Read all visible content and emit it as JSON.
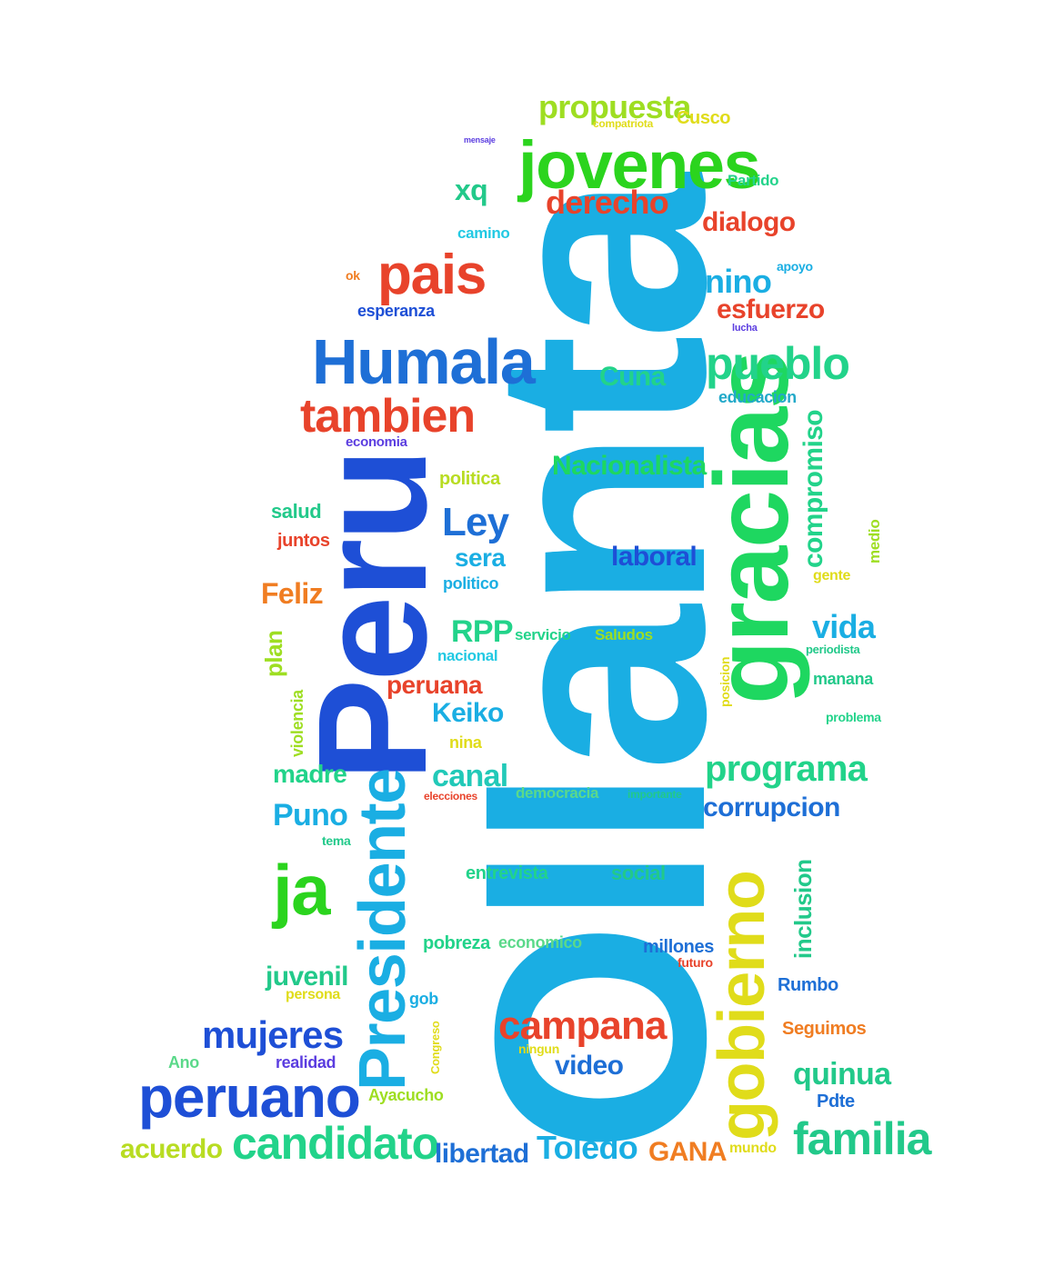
{
  "palette": {
    "cyan": "#1aaee3",
    "blue": "#1e4fd6",
    "green": "#1ed760",
    "lime": "#7fdc2a",
    "yellow": "#e0dc1a",
    "red": "#e8432b",
    "orange": "#f07d22",
    "teal": "#22c9b8",
    "purple": "#5b3de0",
    "lightgreen": "#5bd98a"
  },
  "words": [
    {
      "id": "ollanta",
      "text": "Ollanta",
      "color": "#1aaee3"
    },
    {
      "id": "peru",
      "text": "Peru",
      "color": "#1e4fd6"
    },
    {
      "id": "gracias",
      "text": "gracias",
      "color": "#1ed760"
    },
    {
      "id": "gobierno",
      "text": "gobierno",
      "color": "#e0dc1a"
    },
    {
      "id": "presidente",
      "text": "Presidente",
      "color": "#1aaee3"
    },
    {
      "id": "jovenes",
      "text": "jovenes",
      "color": "#2bd41e"
    },
    {
      "id": "humala",
      "text": "Humala",
      "color": "#1e6fd6"
    },
    {
      "id": "pais",
      "text": "pais",
      "color": "#e8432b"
    },
    {
      "id": "peruano",
      "text": "peruano",
      "color": "#1e4fd6"
    },
    {
      "id": "candidato",
      "text": "candidato",
      "color": "#22d38a"
    },
    {
      "id": "familia",
      "text": "familia",
      "color": "#22c98a"
    },
    {
      "id": "tambien",
      "text": "tambien",
      "color": "#e8432b"
    },
    {
      "id": "ja",
      "text": "ja",
      "color": "#2bd41e"
    },
    {
      "id": "mujeres",
      "text": "mujeres",
      "color": "#1e4fd6"
    },
    {
      "id": "pueblo",
      "text": "pueblo",
      "color": "#22d38a"
    },
    {
      "id": "campana",
      "text": "campana",
      "color": "#e8432b"
    },
    {
      "id": "propuesta",
      "text": "propuesta",
      "color": "#9ede22"
    },
    {
      "id": "derecho",
      "text": "derecho",
      "color": "#e8432b"
    },
    {
      "id": "ley",
      "text": "Ley",
      "color": "#1e6fd6"
    },
    {
      "id": "programa",
      "text": "programa",
      "color": "#22d38a"
    },
    {
      "id": "nino",
      "text": "nino",
      "color": "#1aaee3"
    },
    {
      "id": "esfuerzo",
      "text": "esfuerzo",
      "color": "#e8432b"
    },
    {
      "id": "dialogo",
      "text": "dialogo",
      "color": "#e8432b"
    },
    {
      "id": "nacionalista",
      "text": "Nacionalista",
      "color": "#1ed760"
    },
    {
      "id": "vida",
      "text": "vida",
      "color": "#1aaee3"
    },
    {
      "id": "compromiso",
      "text": "compromiso",
      "color": "#22d38a"
    },
    {
      "id": "corrupcion",
      "text": "corrupcion",
      "color": "#1e6fd6"
    },
    {
      "id": "laboral",
      "text": "laboral",
      "color": "#1e4fd6"
    },
    {
      "id": "rpp",
      "text": "RPP",
      "color": "#22d38a"
    },
    {
      "id": "canal",
      "text": "canal",
      "color": "#22c9b8"
    },
    {
      "id": "toledo",
      "text": "Toledo",
      "color": "#1aaee3"
    },
    {
      "id": "libertad",
      "text": "libertad",
      "color": "#1e6fd6"
    },
    {
      "id": "quinua",
      "text": "quinua",
      "color": "#22c98a"
    },
    {
      "id": "inclusion",
      "text": "inclusion",
      "color": "#22c98a"
    },
    {
      "id": "gana",
      "text": "GANA",
      "color": "#f07d22"
    },
    {
      "id": "puno",
      "text": "Puno",
      "color": "#1aaee3"
    },
    {
      "id": "madre",
      "text": "madre",
      "color": "#22d38a"
    },
    {
      "id": "feliz",
      "text": "Feliz",
      "color": "#f07d22"
    },
    {
      "id": "juvenil",
      "text": "juvenil",
      "color": "#22c98a"
    },
    {
      "id": "acuerdo",
      "text": "acuerdo",
      "color": "#b8dc22"
    },
    {
      "id": "peruana",
      "text": "peruana",
      "color": "#e8432b"
    },
    {
      "id": "keiko",
      "text": "Keiko",
      "color": "#1aaee3"
    },
    {
      "id": "video",
      "text": "video",
      "color": "#1e6fd6"
    },
    {
      "id": "xq",
      "text": "xq",
      "color": "#22c98a"
    },
    {
      "id": "cuna",
      "text": "Cuna",
      "color": "#22d38a"
    },
    {
      "id": "sera",
      "text": "sera",
      "color": "#1aaee3"
    },
    {
      "id": "plan",
      "text": "plan",
      "color": "#9ede22"
    },
    {
      "id": "salud",
      "text": "salud",
      "color": "#22c98a"
    },
    {
      "id": "juntos",
      "text": "juntos",
      "color": "#e8432b"
    },
    {
      "id": "esperanza",
      "text": "esperanza",
      "color": "#1e4fd6"
    },
    {
      "id": "economia",
      "text": "economia",
      "color": "#5b3de0"
    },
    {
      "id": "educacion",
      "text": "educacion",
      "color": "#22a9c9"
    },
    {
      "id": "politica",
      "text": "politica",
      "color": "#b8dc22"
    },
    {
      "id": "politico",
      "text": "politico",
      "color": "#1aaee3"
    },
    {
      "id": "cusco",
      "text": "Cusco",
      "color": "#e0dc1a"
    },
    {
      "id": "partido",
      "text": "Partido",
      "color": "#22d38a"
    },
    {
      "id": "camino",
      "text": "camino",
      "color": "#22c9e3"
    },
    {
      "id": "apoyo",
      "text": "apoyo",
      "color": "#1aaee3"
    },
    {
      "id": "manana",
      "text": "manana",
      "color": "#22c98a"
    },
    {
      "id": "medio",
      "text": "medio",
      "color": "#9ede22"
    },
    {
      "id": "gente",
      "text": "gente",
      "color": "#e0dc1a"
    },
    {
      "id": "servicio",
      "text": "servicio",
      "color": "#22d38a"
    },
    {
      "id": "saludos",
      "text": "Saludos",
      "color": "#9ede22"
    },
    {
      "id": "nacional",
      "text": "nacional",
      "color": "#22c9e3"
    },
    {
      "id": "nina",
      "text": "nina",
      "color": "#e0dc1a"
    },
    {
      "id": "democracia",
      "text": "democracia",
      "color": "#5bd98a"
    },
    {
      "id": "entrevista",
      "text": "entrevista",
      "color": "#22d38a"
    },
    {
      "id": "social",
      "text": "social",
      "color": "#22c98a"
    },
    {
      "id": "pobreza",
      "text": "pobreza",
      "color": "#22d38a"
    },
    {
      "id": "economico",
      "text": "economico",
      "color": "#5bd98a"
    },
    {
      "id": "millones",
      "text": "millones",
      "color": "#1e6fd6"
    },
    {
      "id": "futuro",
      "text": "futuro",
      "color": "#e8432b"
    },
    {
      "id": "rumbo",
      "text": "Rumbo",
      "color": "#1e6fd6"
    },
    {
      "id": "seguimos",
      "text": "Seguimos",
      "color": "#f07d22"
    },
    {
      "id": "pdte",
      "text": "Pdte",
      "color": "#1e6fd6"
    },
    {
      "id": "ayacucho",
      "text": "Ayacucho",
      "color": "#9ede22"
    },
    {
      "id": "realidad",
      "text": "realidad",
      "color": "#5b3de0"
    },
    {
      "id": "ano",
      "text": "Ano",
      "color": "#5bd98a"
    },
    {
      "id": "violencia",
      "text": "violencia",
      "color": "#9ede22"
    },
    {
      "id": "persona",
      "text": "persona",
      "color": "#e0dc1a"
    },
    {
      "id": "gob",
      "text": "gob",
      "color": "#1aaee3"
    },
    {
      "id": "mundo",
      "text": "mundo",
      "color": "#e0dc1a"
    },
    {
      "id": "posicion",
      "text": "posicion",
      "color": "#e0dc1a"
    },
    {
      "id": "problema",
      "text": "problema",
      "color": "#22d38a"
    },
    {
      "id": "periodista",
      "text": "periodista",
      "color": "#22c98a"
    },
    {
      "id": "compatriota",
      "text": "compatriota",
      "color": "#e0dc1a"
    },
    {
      "id": "mensaje",
      "text": "mensaje",
      "color": "#5b3de0"
    },
    {
      "id": "ok",
      "text": "ok",
      "color": "#f07d22"
    },
    {
      "id": "congreso",
      "text": "Congreso",
      "color": "#e0dc1a"
    },
    {
      "id": "lucha",
      "text": "lucha",
      "color": "#5b3de0"
    },
    {
      "id": "ningun",
      "text": "ningun",
      "color": "#e0dc1a"
    },
    {
      "id": "importante",
      "text": "importante",
      "color": "#22c98a"
    },
    {
      "id": "elecciones",
      "text": "elecciones",
      "color": "#e8432b"
    },
    {
      "id": "tema",
      "text": "tema",
      "color": "#22c98a"
    }
  ]
}
